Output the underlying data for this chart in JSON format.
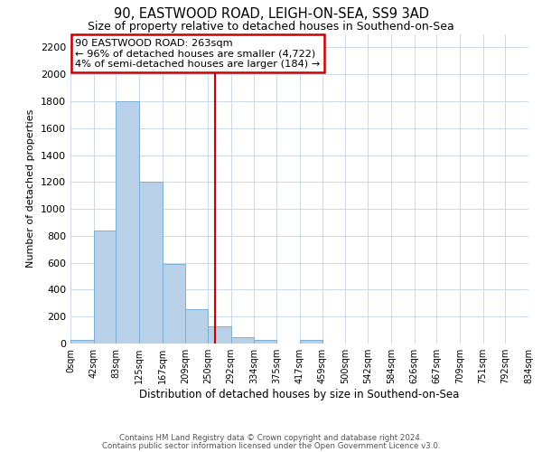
{
  "title": "90, EASTWOOD ROAD, LEIGH-ON-SEA, SS9 3AD",
  "subtitle": "Size of property relative to detached houses in Southend-on-Sea",
  "xlabel": "Distribution of detached houses by size in Southend-on-Sea",
  "ylabel": "Number of detached properties",
  "bin_edges": [
    0,
    42,
    83,
    125,
    167,
    209,
    250,
    292,
    334,
    375,
    417,
    459,
    500,
    542,
    584,
    626,
    667,
    709,
    751,
    792,
    834
  ],
  "bin_counts": [
    25,
    840,
    1800,
    1200,
    590,
    255,
    130,
    45,
    30,
    0,
    30,
    0,
    0,
    0,
    0,
    0,
    0,
    0,
    0,
    0
  ],
  "bar_color": "#b8d0e8",
  "bar_edge_color": "#7bafd4",
  "property_line_x": 263,
  "property_line_color": "#cc0000",
  "annotation_title": "90 EASTWOOD ROAD: 263sqm",
  "annotation_line1": "← 96% of detached houses are smaller (4,722)",
  "annotation_line2": "4% of semi-detached houses are larger (184) →",
  "annotation_box_color": "#ffffff",
  "annotation_box_edge_color": "#cc0000",
  "ylim": [
    0,
    2300
  ],
  "yticks": [
    0,
    200,
    400,
    600,
    800,
    1000,
    1200,
    1400,
    1600,
    1800,
    2000,
    2200
  ],
  "footnote1": "Contains HM Land Registry data © Crown copyright and database right 2024.",
  "footnote2": "Contains public sector information licensed under the Open Government Licence v3.0.",
  "tick_labels": [
    "0sqm",
    "42sqm",
    "83sqm",
    "125sqm",
    "167sqm",
    "209sqm",
    "250sqm",
    "292sqm",
    "334sqm",
    "375sqm",
    "417sqm",
    "459sqm",
    "500sqm",
    "542sqm",
    "584sqm",
    "626sqm",
    "667sqm",
    "709sqm",
    "751sqm",
    "792sqm",
    "834sqm"
  ],
  "background_color": "#ffffff",
  "grid_color": "#ccd8e8"
}
